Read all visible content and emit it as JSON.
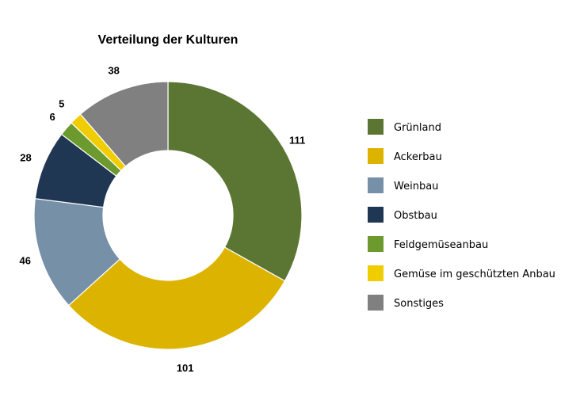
{
  "chart_data": {
    "type": "pie",
    "variant": "donut",
    "title": "Verteilung der Kulturen",
    "categories": [
      "Grünland",
      "Ackerbau",
      "Weinbau",
      "Obstbau",
      "Feldgemüseanbau",
      "Gemüse im geschützten Anbau",
      "Sonstiges"
    ],
    "values": [
      111,
      101,
      46,
      28,
      6,
      5,
      38
    ],
    "labels": [
      "111",
      "101",
      "46",
      "28",
      "6",
      "5",
      "38"
    ],
    "colors": [
      "#5a7632",
      "#dcb400",
      "#7690a8",
      "#1f3753",
      "#6c9a2e",
      "#f0cd00",
      "#808080"
    ],
    "legend_position": "right",
    "start_angle": "12 o'clock",
    "direction": "clockwise"
  }
}
